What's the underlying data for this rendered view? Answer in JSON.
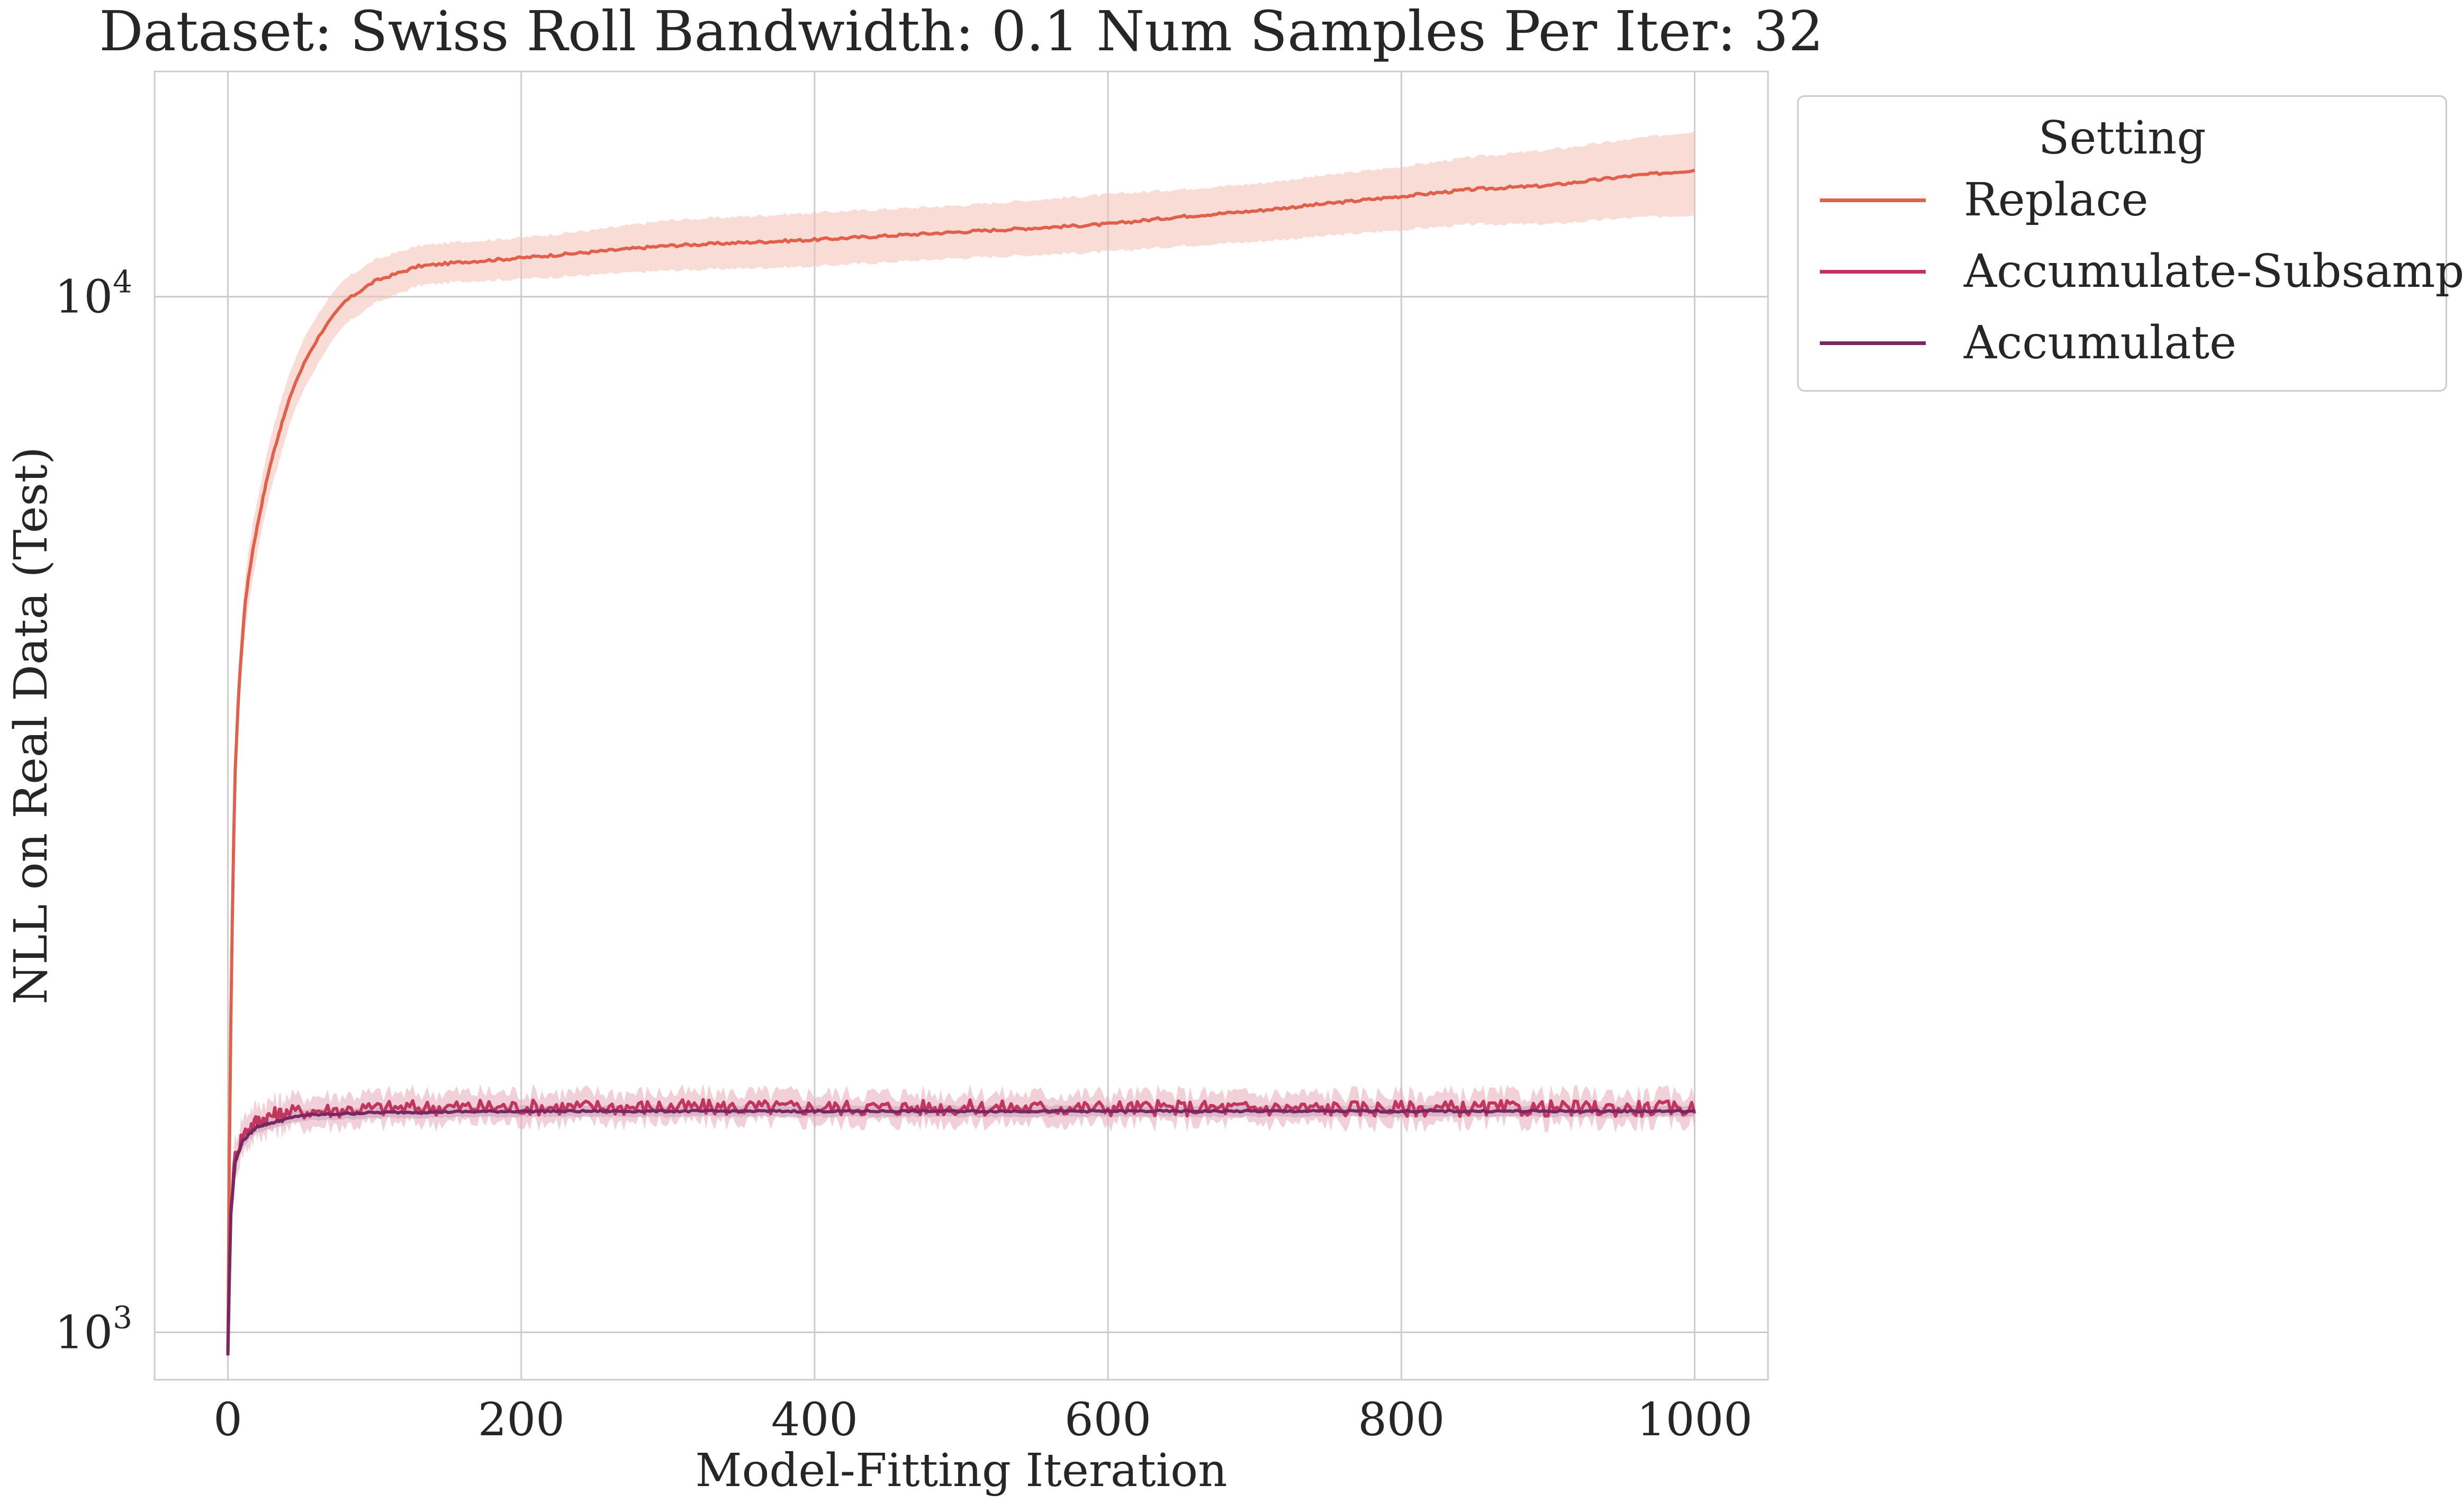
{
  "chart_data": {
    "type": "line",
    "title": "Dataset: Swiss Roll Bandwidth: 0.1 Num Samples Per Iter: 32",
    "xlabel": "Model-Fitting Iteration",
    "ylabel": "NLL on Real Data (Test)",
    "xlim": [
      -50,
      1050
    ],
    "ylim": [
      900,
      16500
    ],
    "yscale": "log",
    "grid": true,
    "x_ticks": [
      0,
      200,
      400,
      600,
      800,
      1000
    ],
    "x_tick_labels": [
      "0",
      "200",
      "400",
      "600",
      "800",
      "1000"
    ],
    "y_ticks": [
      1000,
      10000
    ],
    "y_tick_labels": [
      {
        "base": "10",
        "exp": "3"
      },
      {
        "base": "10",
        "exp": "4"
      }
    ],
    "legend": {
      "title": "Setting",
      "position": "outside-top-right"
    },
    "series": [
      {
        "name": "Replace",
        "color": "#e0604b",
        "band_color": "#f4c0b5",
        "x": [
          0,
          2,
          5,
          8,
          12,
          17,
          22,
          28,
          35,
          45,
          55,
          65,
          80,
          100,
          130,
          160,
          200,
          250,
          300,
          400,
          500,
          600,
          650,
          700,
          800,
          850,
          900,
          950,
          1000
        ],
        "y": [
          950,
          2000,
          3500,
          4300,
          5100,
          5700,
          6200,
          6800,
          7400,
          8200,
          8800,
          9300,
          9900,
          10350,
          10700,
          10800,
          10900,
          11050,
          11200,
          11350,
          11550,
          11750,
          11950,
          12100,
          12500,
          12700,
          12800,
          13050,
          13250
        ],
        "lower": [
          900,
          1900,
          3300,
          4050,
          4800,
          5350,
          5850,
          6400,
          6950,
          7750,
          8300,
          8800,
          9400,
          9850,
          10250,
          10350,
          10400,
          10500,
          10600,
          10700,
          10900,
          11050,
          11200,
          11300,
          11600,
          11750,
          11750,
          11900,
          12000
        ],
        "upper": [
          1000,
          2100,
          3700,
          4550,
          5400,
          6050,
          6550,
          7200,
          7850,
          8650,
          9300,
          9800,
          10400,
          10850,
          11200,
          11300,
          11400,
          11600,
          11850,
          12050,
          12250,
          12550,
          12700,
          12850,
          13350,
          13650,
          13850,
          14150,
          14450
        ]
      },
      {
        "name": "Accumulate-Subsample",
        "color": "#c2355e",
        "band_color": "#e5a9b9",
        "x": [
          0,
          2,
          5,
          10,
          15,
          20,
          30,
          50,
          100,
          150,
          200,
          300,
          400,
          500,
          600,
          700,
          800,
          900,
          1000
        ],
        "y": [
          960,
          1320,
          1480,
          1550,
          1580,
          1600,
          1620,
          1635,
          1645,
          1650,
          1650,
          1650,
          1648,
          1648,
          1647,
          1646,
          1645,
          1645,
          1645
        ],
        "lower": [
          920,
          1270,
          1420,
          1490,
          1520,
          1545,
          1565,
          1580,
          1590,
          1595,
          1597,
          1598,
          1596,
          1595,
          1594,
          1593,
          1592,
          1592,
          1592
        ],
        "upper": [
          1000,
          1370,
          1540,
          1610,
          1640,
          1655,
          1675,
          1690,
          1700,
          1705,
          1705,
          1703,
          1701,
          1700,
          1699,
          1698,
          1698,
          1698,
          1698
        ]
      },
      {
        "name": "Accumulate",
        "color": "#772860",
        "band_color": "#c9a0bd",
        "x": [
          0,
          2,
          5,
          10,
          20,
          50,
          100,
          200,
          400,
          600,
          800,
          1000
        ],
        "y": [
          950,
          1300,
          1460,
          1530,
          1580,
          1620,
          1630,
          1635,
          1635,
          1635,
          1635,
          1635
        ],
        "lower": [
          930,
          1280,
          1440,
          1510,
          1560,
          1600,
          1610,
          1615,
          1615,
          1615,
          1615,
          1615
        ],
        "upper": [
          970,
          1320,
          1480,
          1550,
          1600,
          1640,
          1650,
          1655,
          1655,
          1655,
          1655,
          1655
        ]
      }
    ]
  }
}
